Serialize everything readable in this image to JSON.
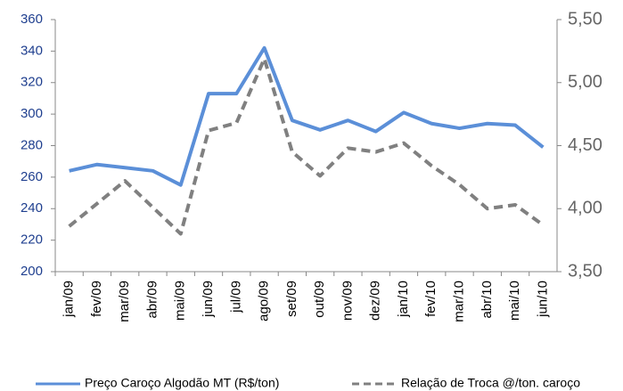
{
  "chart_data": {
    "type": "line",
    "categories": [
      "jan/09",
      "fev/09",
      "mar/09",
      "abr/09",
      "mai/09",
      "jun/09",
      "jul/09",
      "ago/09",
      "set/09",
      "out/09",
      "nov/09",
      "dez/09",
      "jan/10",
      "fev/10",
      "mar/10",
      "abr/10",
      "mai/10",
      "jun/10"
    ],
    "series": [
      {
        "name": "Preço Caroço Algodão MT (R$/ton)",
        "color": "#5b8fd8",
        "dash": false,
        "values": [
          264,
          268,
          266,
          264,
          255,
          313,
          313,
          342,
          296,
          290,
          296,
          289,
          301,
          294,
          291,
          294,
          293,
          279
        ]
      },
      {
        "name": "Relação de Troca @/ton. caroço",
        "color": "#808080",
        "dash": true,
        "axis": "y2",
        "values": [
          3.86,
          4.04,
          4.22,
          4.01,
          3.8,
          4.62,
          4.68,
          5.19,
          4.45,
          4.26,
          4.48,
          4.45,
          4.52,
          4.34,
          4.19,
          4.0,
          4.03,
          3.87
        ]
      }
    ],
    "ylim": [
      200,
      360
    ],
    "yticks": [
      200,
      220,
      240,
      260,
      280,
      300,
      320,
      340,
      360
    ],
    "y2lim": [
      3.5,
      5.5
    ],
    "y2ticks": [
      {
        "value": 3.5,
        "label": "3,50"
      },
      {
        "value": 4.0,
        "label": "4,00"
      },
      {
        "value": 4.5,
        "label": "4,50"
      },
      {
        "value": 5.0,
        "label": "5,00"
      },
      {
        "value": 5.5,
        "label": "5,50"
      }
    ],
    "legend": "bottom"
  }
}
